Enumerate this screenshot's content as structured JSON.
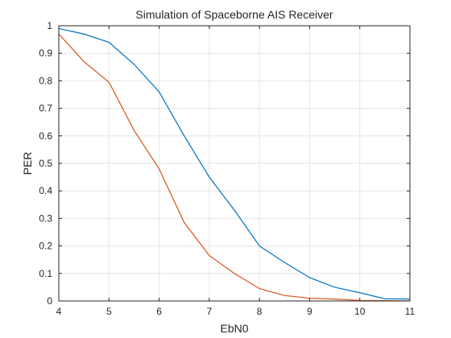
{
  "chart_data": {
    "type": "line",
    "title": "Simulation of Spaceborne AIS Receiver",
    "xlabel": "EbN0",
    "ylabel": "PER",
    "xlim": [
      4,
      11
    ],
    "ylim": [
      0,
      1
    ],
    "xticks": [
      "4",
      "5",
      "6",
      "7",
      "8",
      "9",
      "10",
      "11"
    ],
    "yticks": [
      "0",
      "0.1",
      "0.2",
      "0.3",
      "0.4",
      "0.5",
      "0.6",
      "0.7",
      "0.8",
      "0.9",
      "1"
    ],
    "grid": true,
    "series": [
      {
        "color": "#0072BD",
        "x": [
          4,
          4.5,
          5,
          5.5,
          6,
          6.5,
          7,
          7.5,
          8,
          8.5,
          9,
          9.5,
          10,
          10.5,
          11
        ],
        "y": [
          0.99,
          0.97,
          0.94,
          0.86,
          0.76,
          0.6,
          0.45,
          0.33,
          0.2,
          0.14,
          0.085,
          0.05,
          0.03,
          0.008,
          0.007
        ]
      },
      {
        "color": "#D95319",
        "x": [
          4,
          4.5,
          5,
          5.5,
          6,
          6.5,
          7,
          7.5,
          8,
          8.5,
          9,
          9.5,
          10,
          10.5,
          11
        ],
        "y": [
          0.97,
          0.87,
          0.795,
          0.62,
          0.48,
          0.285,
          0.165,
          0.1,
          0.045,
          0.02,
          0.01,
          0.007,
          0.002,
          0.001,
          0.0
        ]
      }
    ]
  }
}
